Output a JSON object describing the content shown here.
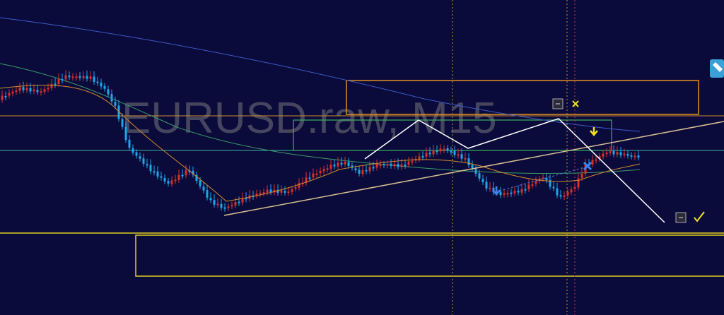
{
  "watermark": "EURUSD.raw, M15"
}
